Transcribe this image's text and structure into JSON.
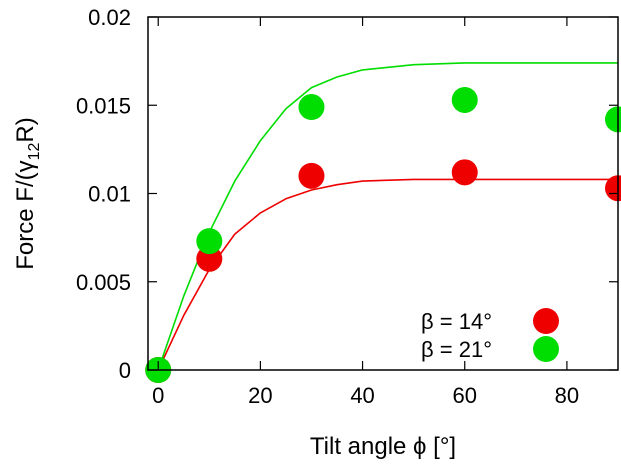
{
  "chart_data": {
    "type": "scatter",
    "xlabel": "Tilt angle ϕ [°]",
    "ylabel_main": "Force F/(γ",
    "ylabel_sub": "12",
    "ylabel_tail": "R)",
    "xlim": [
      -2,
      90
    ],
    "ylim": [
      0,
      0.02
    ],
    "x_ticks": [
      0,
      20,
      40,
      60,
      80
    ],
    "x_tick_labels": [
      "0",
      "20",
      "40",
      "60",
      "80"
    ],
    "y_ticks": [
      0,
      0.005,
      0.01,
      0.015,
      0.02
    ],
    "y_tick_labels": [
      "0",
      "0.005",
      "0.01",
      "0.015",
      "0.02"
    ],
    "grid": false,
    "legend_position": "bottom-right",
    "series": [
      {
        "name": "β = 14°",
        "color": "#ee0000",
        "points": [
          [
            0,
            0
          ],
          [
            10,
            0.0063
          ],
          [
            30,
            0.011
          ],
          [
            60,
            0.0112
          ],
          [
            90,
            0.0103
          ]
        ],
        "fit": [
          [
            0,
            0
          ],
          [
            5,
            0.0031
          ],
          [
            10,
            0.0057
          ],
          [
            15,
            0.0077
          ],
          [
            20,
            0.0089
          ],
          [
            25,
            0.0097
          ],
          [
            30,
            0.0102
          ],
          [
            35,
            0.0105
          ],
          [
            40,
            0.0107
          ],
          [
            50,
            0.0108
          ],
          [
            60,
            0.0108
          ],
          [
            75,
            0.0108
          ],
          [
            90,
            0.0108
          ]
        ]
      },
      {
        "name": "β = 21°",
        "color": "#00dd00",
        "points": [
          [
            0,
            0
          ],
          [
            10,
            0.0073
          ],
          [
            30,
            0.0149
          ],
          [
            60,
            0.0153
          ],
          [
            90,
            0.0142
          ]
        ],
        "fit": [
          [
            0,
            0
          ],
          [
            5,
            0.0042
          ],
          [
            10,
            0.0078
          ],
          [
            15,
            0.0107
          ],
          [
            20,
            0.013
          ],
          [
            25,
            0.0148
          ],
          [
            30,
            0.016
          ],
          [
            35,
            0.0166
          ],
          [
            40,
            0.017
          ],
          [
            50,
            0.0173
          ],
          [
            60,
            0.0174
          ],
          [
            75,
            0.0174
          ],
          [
            90,
            0.0174
          ]
        ]
      }
    ]
  }
}
